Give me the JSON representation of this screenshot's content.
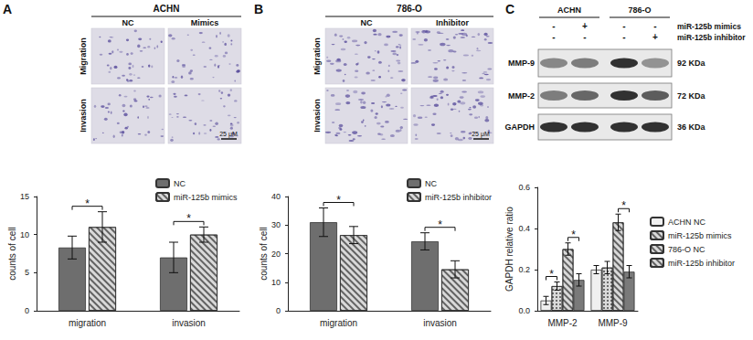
{
  "chart_data": [
    {
      "type": "bar",
      "categories": [
        "migration",
        "invasion"
      ],
      "ylabel": "counts of cell",
      "ylim": [
        0,
        15
      ],
      "yticks": [
        0,
        5,
        10,
        15
      ],
      "grid": false,
      "legend": "top-right",
      "series": [
        {
          "name": "NC",
          "color": "#6e6e6e",
          "marker": "solid",
          "values": [
            8.3,
            7.0
          ],
          "errors": [
            1.5,
            2.0
          ]
        },
        {
          "name": "miR-125b mimics",
          "color": "#d9d9d9",
          "marker": "hatch",
          "values": [
            11.0,
            10.0
          ],
          "errors": [
            2.0,
            1.0
          ]
        }
      ],
      "significance": [
        {
          "category": "migration",
          "pair": [
            0,
            1
          ],
          "text": "*"
        },
        {
          "category": "invasion",
          "pair": [
            0,
            1
          ],
          "text": "*"
        }
      ]
    },
    {
      "type": "bar",
      "categories": [
        "migration",
        "invasion"
      ],
      "ylabel": "counts of cell",
      "ylim": [
        0,
        40
      ],
      "yticks": [
        0,
        10,
        20,
        30,
        40
      ],
      "grid": false,
      "legend": "top-right",
      "series": [
        {
          "name": "NC",
          "color": "#6e6e6e",
          "marker": "solid",
          "values": [
            31.0,
            24.3
          ],
          "errors": [
            5.0,
            3.0
          ]
        },
        {
          "name": "miR-125b inhibitor",
          "color": "#d9d9d9",
          "marker": "hatch",
          "values": [
            26.5,
            14.5
          ],
          "errors": [
            3.0,
            3.0
          ]
        }
      ],
      "significance": [
        {
          "category": "migration",
          "pair": [
            0,
            1
          ],
          "text": "*"
        },
        {
          "category": "invasion",
          "pair": [
            0,
            1
          ],
          "text": "*"
        }
      ]
    },
    {
      "type": "bar",
      "categories": [
        "MMP-2",
        "MMP-9"
      ],
      "ylabel": "GAPDH relative ratio",
      "ylim": [
        0,
        0.6
      ],
      "yticks": [
        {
          "value": 0,
          "label": "0.0"
        },
        0.2,
        0.4,
        0.6
      ],
      "grid": false,
      "legend": "right",
      "series": [
        {
          "name": "ACHN NC",
          "color": "#f0f0f0",
          "marker": "solid",
          "values": [
            0.05,
            0.2
          ],
          "errors": [
            0.02,
            0.02
          ]
        },
        {
          "name": "miR-125b mimics",
          "color": "#d9d9d9",
          "marker": "check",
          "values": [
            0.12,
            0.21
          ],
          "errors": [
            0.02,
            0.03
          ]
        },
        {
          "name": "786-O NC",
          "color": "#d9d9d9",
          "marker": "hatch",
          "values": [
            0.3,
            0.43
          ],
          "errors": [
            0.03,
            0.04
          ]
        },
        {
          "name": "miR-125b inhibitor",
          "color": "#7a7a7a",
          "marker": "solid",
          "values": [
            0.15,
            0.19
          ],
          "errors": [
            0.03,
            0.03
          ]
        }
      ],
      "significance": [
        {
          "category": "MMP-2",
          "pair": [
            0,
            1
          ],
          "text": "*"
        },
        {
          "category": "MMP-2",
          "pair": [
            2,
            3
          ],
          "text": "*"
        },
        {
          "category": "MMP-9",
          "pair": [
            2,
            3
          ],
          "text": "*"
        }
      ]
    }
  ],
  "panels": {
    "A": {
      "label": "A",
      "header": "ACHN",
      "columns": [
        "NC",
        "Mimics"
      ],
      "rows": [
        "Migration",
        "Invasion"
      ],
      "scale_bar": "25 μM"
    },
    "B": {
      "label": "B",
      "header": "786-O",
      "columns": [
        "NC",
        "Inhibitor"
      ],
      "rows": [
        "Migration",
        "Invasion"
      ],
      "scale_bar": "25 μM"
    },
    "C": {
      "label": "C",
      "groups": [
        "ACHN",
        "786-O"
      ],
      "conditions": [
        {
          "name": "miR-125b mimics",
          "lanes": [
            "-",
            "+",
            "-",
            "-"
          ]
        },
        {
          "name": "miR-125b inhibitor",
          "lanes": [
            "-",
            "-",
            "-",
            "+"
          ]
        }
      ],
      "bands": [
        {
          "name": "MMP-9",
          "size": "92 KDa"
        },
        {
          "name": "MMP-2",
          "size": "72 KDa"
        },
        {
          "name": "GAPDH",
          "size": "36 KDa"
        }
      ]
    }
  }
}
